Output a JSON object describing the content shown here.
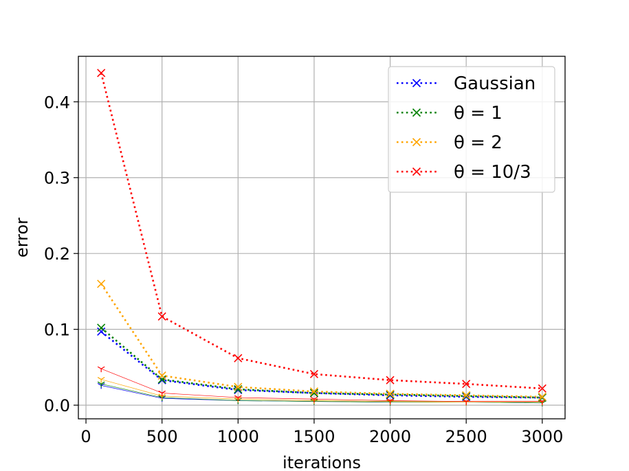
{
  "chart_data": {
    "type": "line",
    "xlabel": "iterations",
    "ylabel": "error",
    "xlim": [
      -50,
      3150
    ],
    "ylim": [
      -0.018,
      0.46
    ],
    "xticks": [
      0,
      500,
      1000,
      1500,
      2000,
      2500,
      3000
    ],
    "xtick_labels": [
      "0",
      "500",
      "1000",
      "1500",
      "2000",
      "2500",
      "3000"
    ],
    "yticks": [
      0.0,
      0.1,
      0.2,
      0.3,
      0.4
    ],
    "ytick_labels": [
      "0.0",
      "0.1",
      "0.2",
      "0.3",
      "0.4"
    ],
    "grid": true,
    "legend_position": "upper right",
    "x": [
      100,
      500,
      1000,
      1500,
      2000,
      2500,
      3000
    ],
    "series": [
      {
        "name": "Gaussian",
        "color": "#0000ff",
        "style": "dotted",
        "marker": "x",
        "values": [
          0.097,
          0.033,
          0.02,
          0.016,
          0.013,
          0.011,
          0.01
        ]
      },
      {
        "name": "θ = 1",
        "color": "#008000",
        "style": "dotted",
        "marker": "x",
        "values": [
          0.102,
          0.034,
          0.021,
          0.016,
          0.014,
          0.012,
          0.01
        ]
      },
      {
        "name": "θ = 2",
        "color": "#ffa500",
        "style": "dotted",
        "marker": "x",
        "values": [
          0.16,
          0.039,
          0.024,
          0.018,
          0.015,
          0.013,
          0.011
        ]
      },
      {
        "name": "θ = 10/3",
        "color": "#ff0000",
        "style": "dotted",
        "marker": "x",
        "values": [
          0.438,
          0.117,
          0.062,
          0.041,
          0.033,
          0.028,
          0.022
        ]
      }
    ],
    "secondary_series": [
      {
        "color": "#0000ff",
        "style": "solid-thin",
        "marker": "tri",
        "values": [
          0.026,
          0.009,
          0.006,
          0.005,
          0.004,
          0.004,
          0.003
        ]
      },
      {
        "color": "#008000",
        "style": "solid-thin",
        "marker": "tri",
        "values": [
          0.028,
          0.01,
          0.006,
          0.005,
          0.004,
          0.004,
          0.003
        ]
      },
      {
        "color": "#ffa500",
        "style": "solid-thin",
        "marker": "tri",
        "values": [
          0.034,
          0.012,
          0.008,
          0.006,
          0.005,
          0.004,
          0.004
        ]
      },
      {
        "color": "#ff0000",
        "style": "solid-thin",
        "marker": "tri",
        "values": [
          0.048,
          0.016,
          0.01,
          0.008,
          0.006,
          0.005,
          0.005
        ]
      }
    ]
  }
}
